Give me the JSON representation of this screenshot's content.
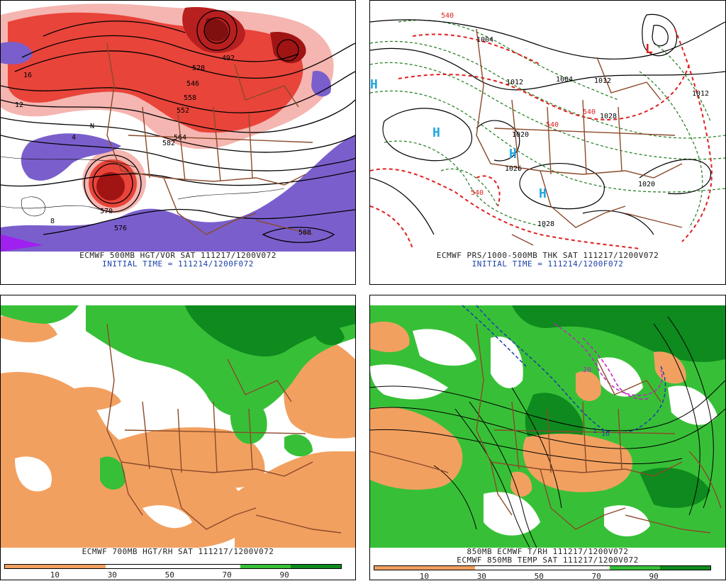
{
  "panels": [
    {
      "id": "500mb-vor",
      "caption_line1": "ECMWF 500MB HGT/VOR SAT 111217/1200V072",
      "caption_line2": "INITIAL TIME = 111214/1200F072",
      "labels": [
        "576",
        "582",
        "564",
        "558",
        "552",
        "546",
        "528",
        "492",
        "588",
        "570",
        "N",
        "4",
        "8",
        "12",
        "16"
      ]
    },
    {
      "id": "sfc-thk",
      "caption_line1": "ECMWF PRS/1000-500MB THK SAT 111217/1200V072",
      "caption_line2": "INITIAL TIME = 111214/1200F072",
      "labels": [
        "1004",
        "1012",
        "1012",
        "1004",
        "1012",
        "1028",
        "1020",
        "1028",
        "1026",
        "1020",
        "540",
        "540",
        "540",
        "540",
        "H",
        "H",
        "H",
        "H",
        "L",
        "1020"
      ]
    },
    {
      "id": "700mb-rh",
      "caption_line1": "ECMWF 700MB HGT/RH SAT 111217/1200V072",
      "colorbar_ticks": [
        "10",
        "30",
        "50",
        "70",
        "90"
      ]
    },
    {
      "id": "850mb-trh",
      "caption_line1": "850MB ECMWF T/RH 111217/1200V072",
      "caption_line2": "ECMWF 850MB TEMP SAT 111217/1200V072",
      "labels": [
        "20",
        "16",
        "1"
      ],
      "colorbar_ticks": [
        "10",
        "30",
        "50",
        "70",
        "90"
      ]
    }
  ],
  "colors": {
    "vort_red": "#e8443a",
    "vort_dark": "#a01414",
    "vort_pink": "#f5b5b0",
    "vort_purple": "#7a5fcc",
    "rh_dry": "#f2a060",
    "rh_moist": "#37c037",
    "rh_wet": "#0e8a1e",
    "border": "#8a4a2a",
    "thickness": "#e02020",
    "dewline": "#1e7a1e",
    "high_mark": "#20a8e0"
  }
}
